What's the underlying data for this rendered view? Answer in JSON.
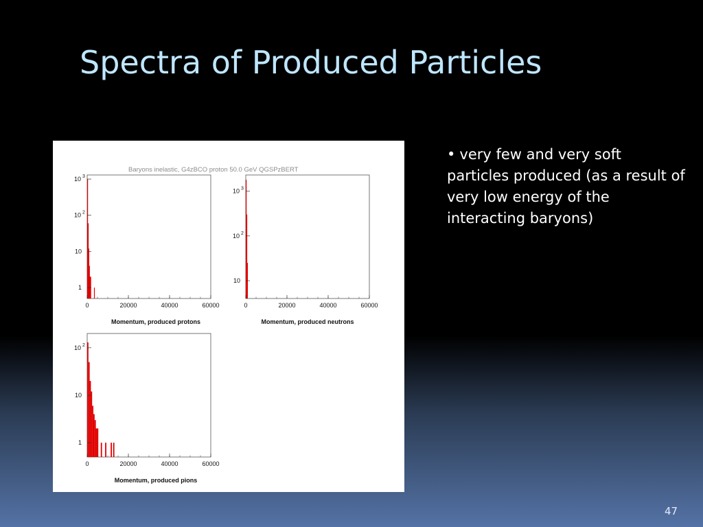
{
  "slide": {
    "title": "Spectra of Produced Particles",
    "bullet": "very few and very soft particles produced (as a result of very low energy of the interacting baryons)",
    "bullet_symbol": "•",
    "page_number": "47",
    "colors": {
      "title": "#bfe6ff",
      "bar": "#e00000",
      "text": "#ffffff"
    }
  },
  "chart_data": [
    {
      "type": "bar",
      "title": "Baryons inelastic,  G4zBCO proton 50.0 GeV QGSPzBERT",
      "xlabel": "Momentum, produced protons",
      "ylabel": "",
      "xlim": [
        0,
        60000
      ],
      "yscale": "log",
      "ylim": [
        0.5,
        1300
      ],
      "xticks": [
        "0",
        "20000",
        "40000",
        "60000"
      ],
      "yticks": [
        {
          "base": "1",
          "exp": ""
        },
        {
          "base": "10",
          "exp": ""
        },
        {
          "base": "10",
          "exp": "2"
        },
        {
          "base": "10",
          "exp": "3"
        }
      ],
      "bins": [
        {
          "x0": 0,
          "x1": 300,
          "y": 1000
        },
        {
          "x0": 300,
          "x1": 600,
          "y": 60
        },
        {
          "x0": 600,
          "x1": 900,
          "y": 12
        },
        {
          "x0": 900,
          "x1": 1200,
          "y": 4
        },
        {
          "x0": 1200,
          "x1": 1500,
          "y": 2
        },
        {
          "x0": 1500,
          "x1": 1800,
          "y": 2
        },
        {
          "x0": 3300,
          "x1": 3600,
          "y": 1
        }
      ]
    },
    {
      "type": "bar",
      "title": "",
      "xlabel": "Momentum, produced neutrons",
      "ylabel": "",
      "xlim": [
        0,
        60000
      ],
      "yscale": "log",
      "ylim": [
        4,
        2300
      ],
      "xticks": [
        "0",
        "20000",
        "40000",
        "60000"
      ],
      "yticks": [
        {
          "base": "10",
          "exp": ""
        },
        {
          "base": "10",
          "exp": "2"
        },
        {
          "base": "10",
          "exp": "3"
        }
      ],
      "bins": [
        {
          "x0": 0,
          "x1": 300,
          "y": 1800
        },
        {
          "x0": 300,
          "x1": 600,
          "y": 300
        },
        {
          "x0": 600,
          "x1": 900,
          "y": 25
        }
      ]
    },
    {
      "type": "bar",
      "title": "",
      "xlabel": "Momentum, produced pions",
      "ylabel": "",
      "xlim": [
        0,
        60000
      ],
      "yscale": "log",
      "ylim": [
        0.5,
        200
      ],
      "xticks": [
        "0",
        "20000",
        "40000",
        "60000"
      ],
      "yticks": [
        {
          "base": "1",
          "exp": ""
        },
        {
          "base": "10",
          "exp": ""
        },
        {
          "base": "10",
          "exp": "2"
        }
      ],
      "bins": [
        {
          "x0": 0,
          "x1": 600,
          "y": 130
        },
        {
          "x0": 600,
          "x1": 1200,
          "y": 50
        },
        {
          "x0": 1200,
          "x1": 1800,
          "y": 20
        },
        {
          "x0": 1800,
          "x1": 2400,
          "y": 12
        },
        {
          "x0": 2400,
          "x1": 3000,
          "y": 6
        },
        {
          "x0": 3000,
          "x1": 3600,
          "y": 4
        },
        {
          "x0": 3600,
          "x1": 4200,
          "y": 3
        },
        {
          "x0": 4200,
          "x1": 4800,
          "y": 2
        },
        {
          "x0": 4800,
          "x1": 5400,
          "y": 2
        },
        {
          "x0": 6600,
          "x1": 7200,
          "y": 1
        },
        {
          "x0": 8700,
          "x1": 9300,
          "y": 1
        },
        {
          "x0": 11400,
          "x1": 12000,
          "y": 1
        },
        {
          "x0": 12600,
          "x1": 13200,
          "y": 1
        }
      ]
    }
  ]
}
